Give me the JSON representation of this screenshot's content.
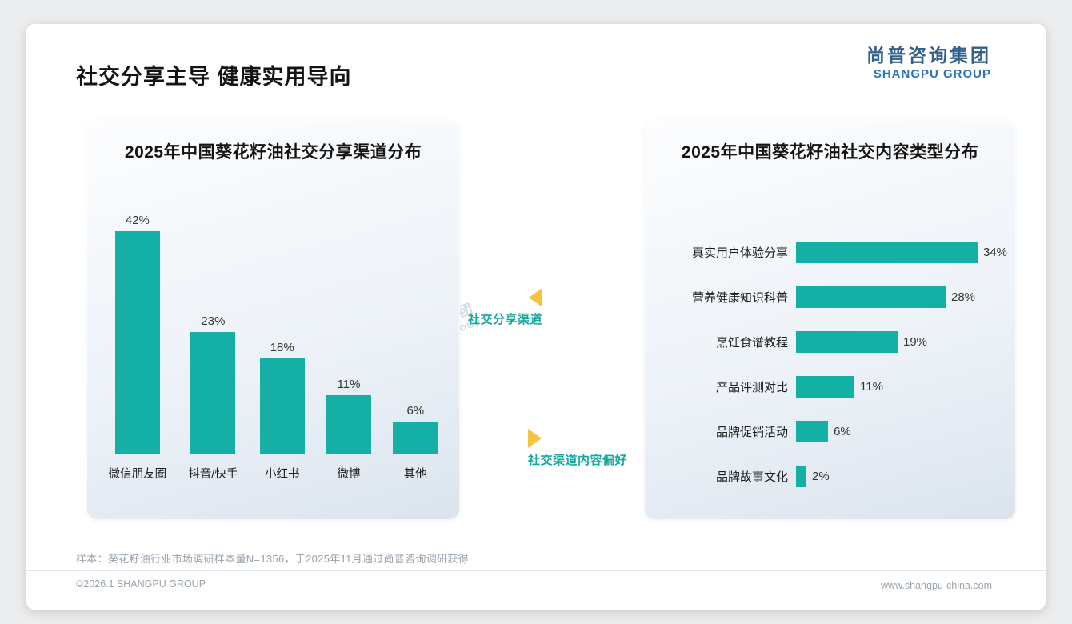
{
  "page": {
    "title": "社交分享主导 健康实用导向",
    "sample_note": "样本：葵花籽油行业市场调研样本量N=1356，于2025年11月通过尚普咨询调研获得",
    "footer_left": "©2026.1 SHANGPU GROUP",
    "footer_right": "www.shangpu-china.com"
  },
  "logo": {
    "cn": "尚普咨询集团",
    "en": "SHANGPU GROUP"
  },
  "watermark": {
    "cn": "尚普咨询集团",
    "en": "SHANGPU GROUP"
  },
  "annotations": {
    "left_label": "社交分享渠道",
    "right_label": "社交渠道内容偏好"
  },
  "colors": {
    "bar": "#15B0A5",
    "accent_yellow": "#F7C441",
    "annotation_teal": "#16A89D",
    "logo_blue": "#33618C",
    "logo_blue_light": "#2E75B6"
  },
  "chart_data": [
    {
      "type": "bar",
      "orientation": "vertical",
      "title": "2025年中国葵花籽油社交分享渠道分布",
      "categories": [
        "微信朋友圈",
        "抖音/快手",
        "小红书",
        "微博",
        "其他"
      ],
      "values": [
        42,
        23,
        18,
        11,
        6
      ],
      "unit": "%",
      "ylim": [
        0,
        45
      ],
      "grid": false,
      "legend": "none"
    },
    {
      "type": "bar",
      "orientation": "horizontal",
      "title": "2025年中国葵花籽油社交内容类型分布",
      "categories": [
        "真实用户体验分享",
        "营养健康知识科普",
        "烹饪食谱教程",
        "产品评测对比",
        "品牌促销活动",
        "品牌故事文化"
      ],
      "values": [
        34,
        28,
        19,
        11,
        6,
        2
      ],
      "unit": "%",
      "xlim": [
        0,
        40
      ],
      "grid": false,
      "legend": "none"
    }
  ]
}
